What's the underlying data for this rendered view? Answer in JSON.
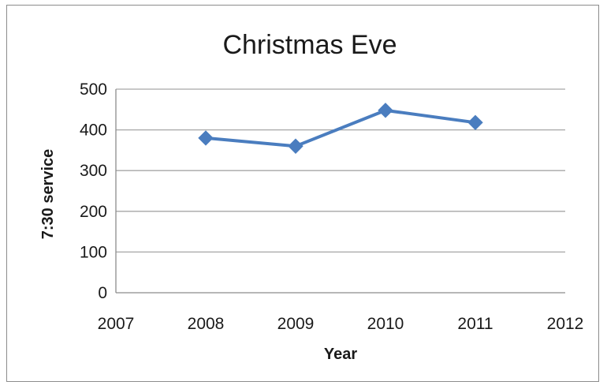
{
  "chart_data": {
    "type": "scatter",
    "title": "Christmas Eve",
    "xlabel": "Year",
    "ylabel": "7:30 service",
    "xlim": [
      2007,
      2012
    ],
    "ylim": [
      0,
      500
    ],
    "xticks": [
      "2007",
      "2008",
      "2009",
      "2010",
      "2011",
      "2012"
    ],
    "yticks": [
      "0",
      "100",
      "200",
      "300",
      "400",
      "500"
    ],
    "grid": true,
    "legend": "none",
    "series": [
      {
        "x": [
          2008,
          2009,
          2010,
          2011
        ],
        "y": [
          380,
          360,
          448,
          418
        ],
        "color": "#4a7dbf",
        "marker": "diamond",
        "line": true
      }
    ]
  }
}
